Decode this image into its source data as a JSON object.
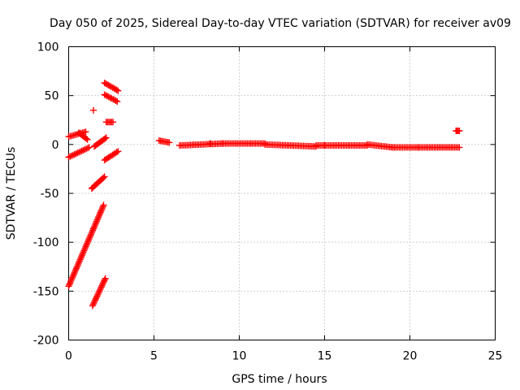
{
  "chart_data": {
    "type": "scatter",
    "title": "Day 050 of 2025, Sidereal Day-to-day VTEC variation (SDTVAR) for receiver av09",
    "xlabel": "GPS time / hours",
    "ylabel": "SDTVAR / TECUs",
    "xlim": [
      0,
      25
    ],
    "ylim": [
      -200,
      100
    ],
    "xticks": [
      0,
      5,
      10,
      15,
      20,
      25
    ],
    "yticks": [
      -200,
      -150,
      -100,
      -50,
      0,
      50,
      100
    ],
    "xtick_labels": [
      "0",
      "5",
      "10",
      "15",
      "20",
      "25"
    ],
    "ytick_labels": [
      "-200",
      "-150",
      "-100",
      "-50",
      "0",
      "50",
      "100"
    ],
    "grid": true,
    "marker": "plus",
    "color": "#ff0000",
    "series": [
      {
        "name": "SDTVAR",
        "segments": [
          {
            "x": [
              0.0,
              2.05
            ],
            "y": [
              -145,
              -62
            ]
          },
          {
            "x": [
              0.0,
              1.0
            ],
            "y": [
              8,
              13
            ]
          },
          {
            "x": [
              0.0,
              1.2
            ],
            "y": [
              -13,
              -3
            ]
          },
          {
            "x": [
              0.6,
              1.1
            ],
            "y": [
              12,
              5
            ]
          },
          {
            "x": [
              1.35,
              2.1
            ],
            "y": [
              -45,
              -33
            ]
          },
          {
            "x": [
              1.4,
              2.15
            ],
            "y": [
              -165,
              -137
            ]
          },
          {
            "x": [
              1.5,
              2.2
            ],
            "y": [
              -2,
              7
            ]
          },
          {
            "x": [
              2.1,
              2.9
            ],
            "y": [
              63,
              55
            ]
          },
          {
            "x": [
              2.1,
              2.85
            ],
            "y": [
              51,
              44
            ]
          },
          {
            "x": [
              2.2,
              2.6
            ],
            "y": [
              23,
              23
            ]
          },
          {
            "x": [
              2.1,
              2.9
            ],
            "y": [
              -16,
              -7
            ]
          },
          {
            "x": [
              5.3,
              5.9
            ],
            "y": [
              4,
              2
            ]
          },
          {
            "x": [
              6.5,
              9.0
            ],
            "y": [
              -1,
              1
            ]
          },
          {
            "x": [
              9.0,
              11.5
            ],
            "y": [
              1,
              1
            ]
          },
          {
            "x": [
              11.5,
              14.5
            ],
            "y": [
              0,
              -2
            ]
          },
          {
            "x": [
              14.5,
              17.5
            ],
            "y": [
              -1,
              -1
            ]
          },
          {
            "x": [
              17.5,
              19.0
            ],
            "y": [
              0,
              -3
            ]
          },
          {
            "x": [
              19.0,
              20.5
            ],
            "y": [
              -3,
              -3
            ]
          },
          {
            "x": [
              20.5,
              22.9
            ],
            "y": [
              -3,
              -3
            ]
          },
          {
            "x": [
              22.7,
              22.9
            ],
            "y": [
              14,
              14
            ]
          }
        ],
        "isolated_points": [
          {
            "x": 1.45,
            "y": 35
          },
          {
            "x": 8.3,
            "y": 1
          },
          {
            "x": 15.0,
            "y": -1
          }
        ]
      }
    ]
  }
}
